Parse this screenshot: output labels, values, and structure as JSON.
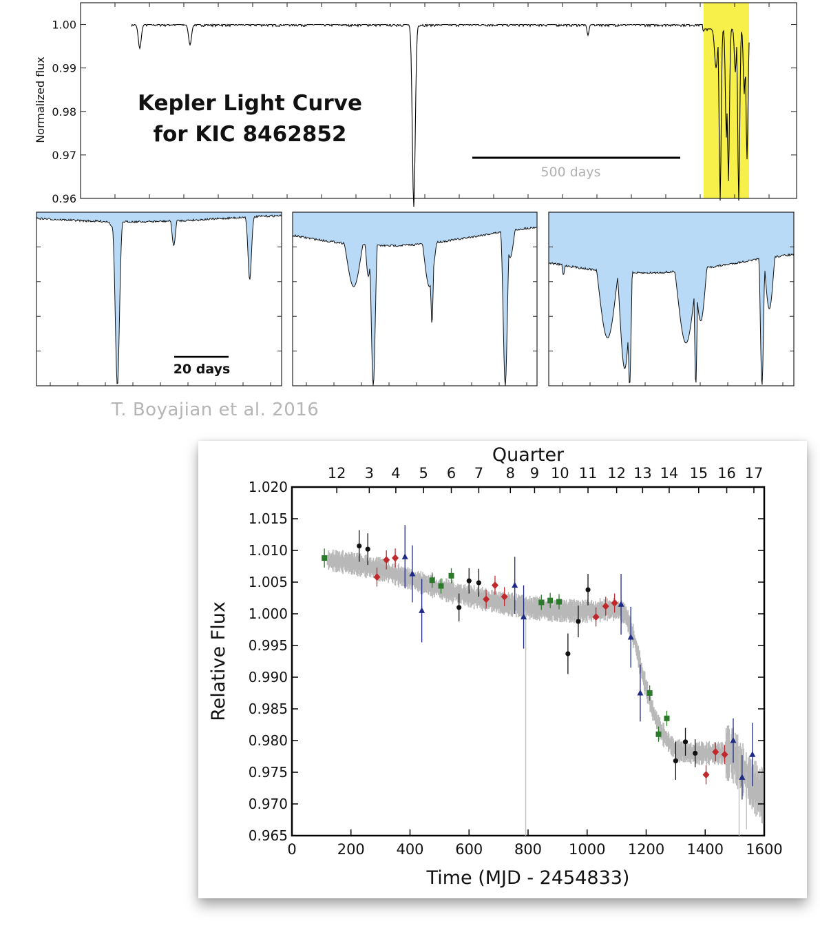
{
  "credit": "T. Boyajian et al. 2016",
  "chart_data": [
    {
      "type": "line",
      "title": "Kepler Light Curve\nfor KIC 8462852",
      "title_lines": [
        "Kepler Light Curve",
        "for KIC 8462852"
      ],
      "ylabel": "Normalized flux",
      "yticks": [
        "1.00",
        "0.99",
        "0.98",
        "0.97",
        "0.96"
      ],
      "ylim": [
        0.96,
        1.005
      ],
      "scale_bar": "500 days",
      "highlight": {
        "color": "#f7f04a",
        "region": "final ~100 days"
      },
      "series": [
        {
          "color": "#000000",
          "dips": [
            {
              "position": 0.05,
              "depth": 0.994
            },
            {
              "position": 0.14,
              "depth": 0.995
            },
            {
              "position": 0.49,
              "depth": 0.958
            },
            {
              "position": 0.8,
              "depth": 0.998
            },
            {
              "position": 0.92,
              "depth": 0.96
            },
            {
              "position": 0.95,
              "depth": 0.96
            },
            {
              "position": 0.99,
              "depth": 0.96
            }
          ]
        }
      ]
    },
    {
      "type": "area",
      "panel": "zoom-1",
      "fill_color": "#b9daf7",
      "scale_bar": "20 days",
      "dips": [
        {
          "position": 0.33,
          "depth": "deep"
        },
        {
          "position": 0.56,
          "depth": "shallow"
        },
        {
          "position": 0.88,
          "depth": "medium"
        }
      ]
    },
    {
      "type": "area",
      "panel": "zoom-2",
      "fill_color": "#b9daf7",
      "dips": [
        {
          "position": 0.25,
          "depth": "medium"
        },
        {
          "position": 0.33,
          "depth": "deep"
        },
        {
          "position": 0.56,
          "depth": "medium"
        },
        {
          "position": 0.87,
          "depth": "deep"
        }
      ]
    },
    {
      "type": "area",
      "panel": "zoom-3",
      "fill_color": "#b9daf7",
      "dips": [
        {
          "position": 0.25,
          "depth": "deep"
        },
        {
          "position": 0.32,
          "depth": "deep"
        },
        {
          "position": 0.56,
          "depth": "deep"
        },
        {
          "position": 0.62,
          "depth": "medium"
        },
        {
          "position": 0.87,
          "depth": "deep"
        }
      ]
    },
    {
      "type": "scatter",
      "xlabel": "Time (MJD - 2454833)",
      "ylabel": "Relative Flux",
      "top_axis_label": "Quarter",
      "xlim": [
        0,
        1600
      ],
      "ylim": [
        0.965,
        1.02
      ],
      "xticks": [
        0,
        200,
        400,
        600,
        800,
        1000,
        1200,
        1400,
        1600
      ],
      "yticks": [
        "1.020",
        "1.015",
        "1.010",
        "1.005",
        "1.000",
        "0.995",
        "0.990",
        "0.985",
        "0.980",
        "0.975",
        "0.970",
        "0.965"
      ],
      "quarters": [
        {
          "label": "12",
          "x": 152
        },
        {
          "label": "3",
          "x": 262
        },
        {
          "label": "4",
          "x": 352
        },
        {
          "label": "5",
          "x": 446
        },
        {
          "label": "6",
          "x": 540
        },
        {
          "label": "7",
          "x": 633
        },
        {
          "label": "8",
          "x": 740
        },
        {
          "label": "9",
          "x": 822
        },
        {
          "label": "10",
          "x": 908
        },
        {
          "label": "11",
          "x": 1003
        },
        {
          "label": "12",
          "x": 1100
        },
        {
          "label": "13",
          "x": 1188
        },
        {
          "label": "14",
          "x": 1278
        },
        {
          "label": "15",
          "x": 1378
        },
        {
          "label": "16",
          "x": 1473
        },
        {
          "label": "17",
          "x": 1565
        }
      ],
      "trend": {
        "color": "#b8b8b8",
        "x": [
          120,
          200,
          300,
          400,
          500,
          600,
          700,
          800,
          900,
          1000,
          1050,
          1100,
          1130,
          1160,
          1190,
          1220,
          1250,
          1280,
          1300,
          1350,
          1400,
          1450,
          1490,
          1520,
          1560,
          1600
        ],
        "y": [
          1.0085,
          1.008,
          1.007,
          1.0055,
          1.004,
          1.0028,
          1.0018,
          1.001,
          1.0005,
          1.0004,
          1.0006,
          1.0007,
          1.0,
          0.996,
          0.99,
          0.985,
          0.9815,
          0.9795,
          0.9785,
          0.978,
          0.978,
          0.978,
          0.978,
          0.976,
          0.973,
          0.971
        ]
      },
      "series": [
        {
          "name": "black",
          "color": "#111111",
          "marker": "circle",
          "points": [
            {
              "x": 228,
              "y": 1.0107,
              "err": 0.0025
            },
            {
              "x": 257,
              "y": 1.0102,
              "err": 0.0025
            },
            {
              "x": 566,
              "y": 1.001,
              "err": 0.0022
            },
            {
              "x": 600,
              "y": 1.0052,
              "err": 0.002
            },
            {
              "x": 633,
              "y": 1.0049,
              "err": 0.0022
            },
            {
              "x": 935,
              "y": 0.9937,
              "err": 0.0032
            },
            {
              "x": 970,
              "y": 0.9988,
              "err": 0.0025
            },
            {
              "x": 1003,
              "y": 1.0038,
              "err": 0.0025
            },
            {
              "x": 1300,
              "y": 0.9768,
              "err": 0.003
            },
            {
              "x": 1333,
              "y": 0.9798,
              "err": 0.0022
            },
            {
              "x": 1366,
              "y": 0.978,
              "err": 0.0022
            }
          ]
        },
        {
          "name": "red",
          "color": "#c0282b",
          "marker": "diamond",
          "points": [
            {
              "x": 288,
              "y": 1.0058,
              "err": 0.0015
            },
            {
              "x": 320,
              "y": 1.0085,
              "err": 0.0015
            },
            {
              "x": 350,
              "y": 1.0088,
              "err": 0.0015
            },
            {
              "x": 658,
              "y": 1.0023,
              "err": 0.0015
            },
            {
              "x": 688,
              "y": 1.0045,
              "err": 0.0015
            },
            {
              "x": 720,
              "y": 1.0027,
              "err": 0.0015
            },
            {
              "x": 1030,
              "y": 0.9995,
              "err": 0.0015
            },
            {
              "x": 1063,
              "y": 1.0012,
              "err": 0.0015
            },
            {
              "x": 1093,
              "y": 1.0017,
              "err": 0.0015
            },
            {
              "x": 1403,
              "y": 0.9746,
              "err": 0.0015
            },
            {
              "x": 1435,
              "y": 0.9782,
              "err": 0.0015
            },
            {
              "x": 1466,
              "y": 0.9778,
              "err": 0.0015
            }
          ]
        },
        {
          "name": "green",
          "color": "#2a7a2a",
          "marker": "square",
          "points": [
            {
              "x": 110,
              "y": 1.0088,
              "err": 0.0015
            },
            {
              "x": 475,
              "y": 1.0053,
              "err": 0.0012
            },
            {
              "x": 505,
              "y": 1.0044,
              "err": 0.0012
            },
            {
              "x": 540,
              "y": 1.006,
              "err": 0.0012
            },
            {
              "x": 845,
              "y": 1.0018,
              "err": 0.0012
            },
            {
              "x": 875,
              "y": 1.0021,
              "err": 0.0012
            },
            {
              "x": 905,
              "y": 1.0019,
              "err": 0.0012
            },
            {
              "x": 1212,
              "y": 0.9875,
              "err": 0.0012
            },
            {
              "x": 1242,
              "y": 0.981,
              "err": 0.0012
            },
            {
              "x": 1270,
              "y": 0.9835,
              "err": 0.0012
            }
          ]
        },
        {
          "name": "blue",
          "color": "#1f2a86",
          "marker": "triangle",
          "points": [
            {
              "x": 383,
              "y": 1.009,
              "err": 0.005
            },
            {
              "x": 408,
              "y": 1.0063,
              "err": 0.0045
            },
            {
              "x": 440,
              "y": 1.0005,
              "err": 0.005
            },
            {
              "x": 755,
              "y": 1.0045,
              "err": 0.0045
            },
            {
              "x": 785,
              "y": 0.9995,
              "err": 0.005
            },
            {
              "x": 1115,
              "y": 1.0015,
              "err": 0.0048
            },
            {
              "x": 1148,
              "y": 0.9963,
              "err": 0.0048
            },
            {
              "x": 1180,
              "y": 0.9875,
              "err": 0.0045
            },
            {
              "x": 1495,
              "y": 0.98,
              "err": 0.0035
            },
            {
              "x": 1525,
              "y": 0.9742,
              "err": 0.0035
            },
            {
              "x": 1560,
              "y": 0.9778,
              "err": 0.005
            }
          ]
        }
      ]
    }
  ]
}
